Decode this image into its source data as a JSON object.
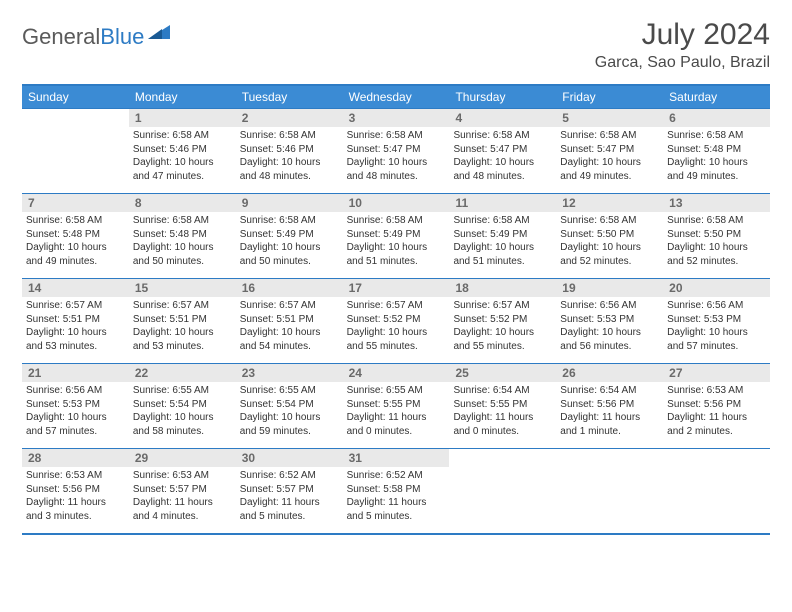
{
  "brand": {
    "part1": "General",
    "part2": "Blue"
  },
  "title": "July 2024",
  "location": "Garca, Sao Paulo, Brazil",
  "colors": {
    "header_bg": "#3b8bd4",
    "border": "#2d7bc4",
    "daynum_bg": "#e9e9e9",
    "text": "#333333"
  },
  "weekdays": [
    "Sunday",
    "Monday",
    "Tuesday",
    "Wednesday",
    "Thursday",
    "Friday",
    "Saturday"
  ],
  "weeks": [
    [
      null,
      {
        "n": "1",
        "sr": "Sunrise: 6:58 AM",
        "ss": "Sunset: 5:46 PM",
        "d1": "Daylight: 10 hours",
        "d2": "and 47 minutes."
      },
      {
        "n": "2",
        "sr": "Sunrise: 6:58 AM",
        "ss": "Sunset: 5:46 PM",
        "d1": "Daylight: 10 hours",
        "d2": "and 48 minutes."
      },
      {
        "n": "3",
        "sr": "Sunrise: 6:58 AM",
        "ss": "Sunset: 5:47 PM",
        "d1": "Daylight: 10 hours",
        "d2": "and 48 minutes."
      },
      {
        "n": "4",
        "sr": "Sunrise: 6:58 AM",
        "ss": "Sunset: 5:47 PM",
        "d1": "Daylight: 10 hours",
        "d2": "and 48 minutes."
      },
      {
        "n": "5",
        "sr": "Sunrise: 6:58 AM",
        "ss": "Sunset: 5:47 PM",
        "d1": "Daylight: 10 hours",
        "d2": "and 49 minutes."
      },
      {
        "n": "6",
        "sr": "Sunrise: 6:58 AM",
        "ss": "Sunset: 5:48 PM",
        "d1": "Daylight: 10 hours",
        "d2": "and 49 minutes."
      }
    ],
    [
      {
        "n": "7",
        "sr": "Sunrise: 6:58 AM",
        "ss": "Sunset: 5:48 PM",
        "d1": "Daylight: 10 hours",
        "d2": "and 49 minutes."
      },
      {
        "n": "8",
        "sr": "Sunrise: 6:58 AM",
        "ss": "Sunset: 5:48 PM",
        "d1": "Daylight: 10 hours",
        "d2": "and 50 minutes."
      },
      {
        "n": "9",
        "sr": "Sunrise: 6:58 AM",
        "ss": "Sunset: 5:49 PM",
        "d1": "Daylight: 10 hours",
        "d2": "and 50 minutes."
      },
      {
        "n": "10",
        "sr": "Sunrise: 6:58 AM",
        "ss": "Sunset: 5:49 PM",
        "d1": "Daylight: 10 hours",
        "d2": "and 51 minutes."
      },
      {
        "n": "11",
        "sr": "Sunrise: 6:58 AM",
        "ss": "Sunset: 5:49 PM",
        "d1": "Daylight: 10 hours",
        "d2": "and 51 minutes."
      },
      {
        "n": "12",
        "sr": "Sunrise: 6:58 AM",
        "ss": "Sunset: 5:50 PM",
        "d1": "Daylight: 10 hours",
        "d2": "and 52 minutes."
      },
      {
        "n": "13",
        "sr": "Sunrise: 6:58 AM",
        "ss": "Sunset: 5:50 PM",
        "d1": "Daylight: 10 hours",
        "d2": "and 52 minutes."
      }
    ],
    [
      {
        "n": "14",
        "sr": "Sunrise: 6:57 AM",
        "ss": "Sunset: 5:51 PM",
        "d1": "Daylight: 10 hours",
        "d2": "and 53 minutes."
      },
      {
        "n": "15",
        "sr": "Sunrise: 6:57 AM",
        "ss": "Sunset: 5:51 PM",
        "d1": "Daylight: 10 hours",
        "d2": "and 53 minutes."
      },
      {
        "n": "16",
        "sr": "Sunrise: 6:57 AM",
        "ss": "Sunset: 5:51 PM",
        "d1": "Daylight: 10 hours",
        "d2": "and 54 minutes."
      },
      {
        "n": "17",
        "sr": "Sunrise: 6:57 AM",
        "ss": "Sunset: 5:52 PM",
        "d1": "Daylight: 10 hours",
        "d2": "and 55 minutes."
      },
      {
        "n": "18",
        "sr": "Sunrise: 6:57 AM",
        "ss": "Sunset: 5:52 PM",
        "d1": "Daylight: 10 hours",
        "d2": "and 55 minutes."
      },
      {
        "n": "19",
        "sr": "Sunrise: 6:56 AM",
        "ss": "Sunset: 5:53 PM",
        "d1": "Daylight: 10 hours",
        "d2": "and 56 minutes."
      },
      {
        "n": "20",
        "sr": "Sunrise: 6:56 AM",
        "ss": "Sunset: 5:53 PM",
        "d1": "Daylight: 10 hours",
        "d2": "and 57 minutes."
      }
    ],
    [
      {
        "n": "21",
        "sr": "Sunrise: 6:56 AM",
        "ss": "Sunset: 5:53 PM",
        "d1": "Daylight: 10 hours",
        "d2": "and 57 minutes."
      },
      {
        "n": "22",
        "sr": "Sunrise: 6:55 AM",
        "ss": "Sunset: 5:54 PM",
        "d1": "Daylight: 10 hours",
        "d2": "and 58 minutes."
      },
      {
        "n": "23",
        "sr": "Sunrise: 6:55 AM",
        "ss": "Sunset: 5:54 PM",
        "d1": "Daylight: 10 hours",
        "d2": "and 59 minutes."
      },
      {
        "n": "24",
        "sr": "Sunrise: 6:55 AM",
        "ss": "Sunset: 5:55 PM",
        "d1": "Daylight: 11 hours",
        "d2": "and 0 minutes."
      },
      {
        "n": "25",
        "sr": "Sunrise: 6:54 AM",
        "ss": "Sunset: 5:55 PM",
        "d1": "Daylight: 11 hours",
        "d2": "and 0 minutes."
      },
      {
        "n": "26",
        "sr": "Sunrise: 6:54 AM",
        "ss": "Sunset: 5:56 PM",
        "d1": "Daylight: 11 hours",
        "d2": "and 1 minute."
      },
      {
        "n": "27",
        "sr": "Sunrise: 6:53 AM",
        "ss": "Sunset: 5:56 PM",
        "d1": "Daylight: 11 hours",
        "d2": "and 2 minutes."
      }
    ],
    [
      {
        "n": "28",
        "sr": "Sunrise: 6:53 AM",
        "ss": "Sunset: 5:56 PM",
        "d1": "Daylight: 11 hours",
        "d2": "and 3 minutes."
      },
      {
        "n": "29",
        "sr": "Sunrise: 6:53 AM",
        "ss": "Sunset: 5:57 PM",
        "d1": "Daylight: 11 hours",
        "d2": "and 4 minutes."
      },
      {
        "n": "30",
        "sr": "Sunrise: 6:52 AM",
        "ss": "Sunset: 5:57 PM",
        "d1": "Daylight: 11 hours",
        "d2": "and 5 minutes."
      },
      {
        "n": "31",
        "sr": "Sunrise: 6:52 AM",
        "ss": "Sunset: 5:58 PM",
        "d1": "Daylight: 11 hours",
        "d2": "and 5 minutes."
      },
      null,
      null,
      null
    ]
  ]
}
